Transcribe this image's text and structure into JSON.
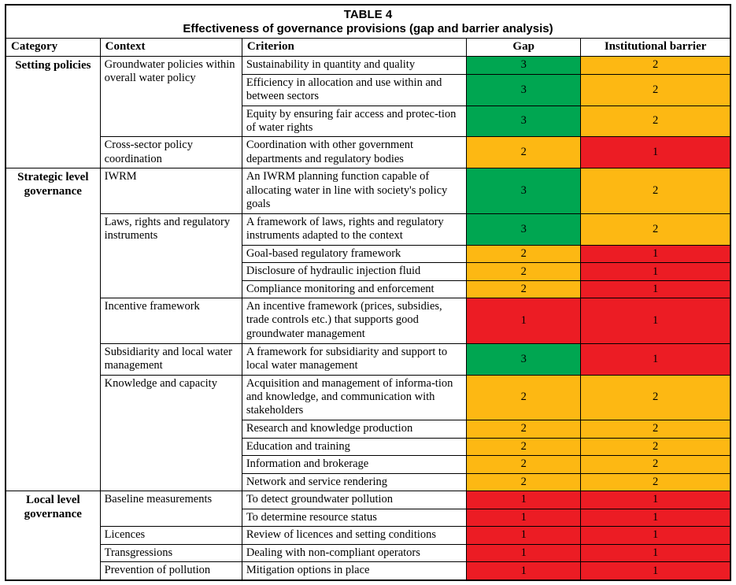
{
  "title": {
    "line1": "TABLE 4",
    "line2": "Effectiveness of governance provisions (gap and barrier analysis)"
  },
  "columns": [
    "Category",
    "Context",
    "Criterion",
    "Gap",
    "Institutional barrier"
  ],
  "value_colors": {
    "3": "#00A651",
    "2": "#FDB813",
    "1": "#EC1C24"
  },
  "categories": [
    {
      "label": "Setting policies",
      "contexts": [
        {
          "label": "Groundwater policies within overall water policy",
          "criteria": [
            {
              "text": "Sustainability in quantity and quality",
              "gap": 3,
              "barrier": 2
            },
            {
              "text": "Efficiency in allocation and use within and between sectors",
              "gap": 3,
              "barrier": 2
            },
            {
              "text": "Equity by ensuring fair access and protec-tion of water rights",
              "gap": 3,
              "barrier": 2
            }
          ]
        },
        {
          "label": "Cross-sector policy coordination",
          "criteria": [
            {
              "text": "Coordination with other government departments and regulatory bodies",
              "gap": 2,
              "barrier": 1
            }
          ]
        }
      ]
    },
    {
      "label": "Strategic level governance",
      "contexts": [
        {
          "label": "IWRM",
          "criteria": [
            {
              "text": "An IWRM planning function capable of allocating water in line with society's policy goals",
              "gap": 3,
              "barrier": 2
            }
          ]
        },
        {
          "label": "Laws, rights and regulatory instruments",
          "criteria": [
            {
              "text": "A framework of laws, rights and regulatory instruments adapted to the context",
              "gap": 3,
              "barrier": 2
            },
            {
              "text": "Goal-based regulatory framework",
              "gap": 2,
              "barrier": 1
            },
            {
              "text": "Disclosure of hydraulic injection fluid",
              "gap": 2,
              "barrier": 1
            },
            {
              "text": "Compliance monitoring and enforcement",
              "gap": 2,
              "barrier": 1
            }
          ]
        },
        {
          "label": "Incentive framework",
          "criteria": [
            {
              "text": "An incentive framework (prices, subsidies, trade controls etc.) that supports good groundwater management",
              "gap": 1,
              "barrier": 1
            }
          ]
        },
        {
          "label": "Subsidiarity and local water management",
          "criteria": [
            {
              "text": "A framework for subsidiarity and support to local water management",
              "gap": 3,
              "barrier": 1
            }
          ]
        },
        {
          "label": "Knowledge and capacity",
          "criteria": [
            {
              "text": "Acquisition and management of informa-tion and knowledge, and communication with stakeholders",
              "gap": 2,
              "barrier": 2
            },
            {
              "text": "Research and knowledge production",
              "gap": 2,
              "barrier": 2
            },
            {
              "text": "Education and training",
              "gap": 2,
              "barrier": 2
            },
            {
              "text": "Information and brokerage",
              "gap": 2,
              "barrier": 2
            },
            {
              "text": "Network and service rendering",
              "gap": 2,
              "barrier": 2
            }
          ]
        }
      ]
    },
    {
      "label": "Local level governance",
      "contexts": [
        {
          "label": "Baseline measurements",
          "criteria": [
            {
              "text": "To detect groundwater pollution",
              "gap": 1,
              "barrier": 1
            },
            {
              "text": "To determine resource status",
              "gap": 1,
              "barrier": 1
            }
          ]
        },
        {
          "label": "Licences",
          "criteria": [
            {
              "text": "Review of licences and setting conditions",
              "gap": 1,
              "barrier": 1
            }
          ]
        },
        {
          "label": "Transgressions",
          "criteria": [
            {
              "text": "Dealing with non-compliant operators",
              "gap": 1,
              "barrier": 1
            }
          ]
        },
        {
          "label": "Prevention of pollution",
          "criteria": [
            {
              "text": "Mitigation options in place",
              "gap": 1,
              "barrier": 1
            }
          ]
        }
      ]
    }
  ]
}
